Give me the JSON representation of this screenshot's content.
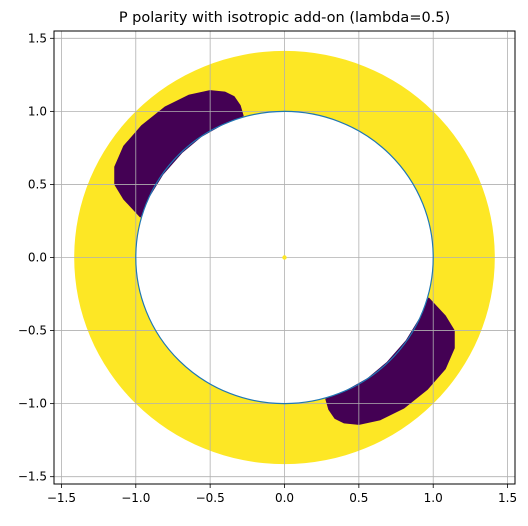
{
  "chart_data": {
    "type": "scatter",
    "title": "P polarity with isotropic add-on (lambda=0.5)",
    "xlabel": "",
    "ylabel": "",
    "xlim": [
      -1.55,
      1.55
    ],
    "ylim": [
      -1.55,
      1.55
    ],
    "grid": true,
    "aspect": "equal",
    "x_ticks": [
      -1.5,
      -1.0,
      -0.5,
      0.0,
      0.5,
      1.0,
      1.5
    ],
    "x_tick_labels": [
      "−1.5",
      "−1.0",
      "−0.5",
      "0.0",
      "0.5",
      "1.0",
      "1.5"
    ],
    "y_ticks": [
      -1.5,
      -1.0,
      -0.5,
      0.0,
      0.5,
      1.0,
      1.5
    ],
    "y_tick_labels": [
      "−1.5",
      "−1.0",
      "−0.5",
      "0.0",
      "0.5",
      "1.0",
      "1.5"
    ],
    "annulus": {
      "inner_radius": 1.0,
      "outer_radius": 1.4142,
      "fill_color": "#fde725"
    },
    "negative_regions": [
      {
        "color": "#440154",
        "outline": [
          [
            -0.97,
            0.28
          ],
          [
            -1.08,
            0.4
          ],
          [
            -1.14,
            0.5
          ],
          [
            -1.14,
            0.62
          ],
          [
            -1.08,
            0.76
          ],
          [
            -0.96,
            0.9
          ],
          [
            -0.8,
            1.03
          ],
          [
            -0.64,
            1.11
          ],
          [
            -0.5,
            1.14
          ],
          [
            -0.4,
            1.13
          ],
          [
            -0.34,
            1.1
          ],
          [
            -0.3,
            1.04
          ],
          [
            -0.28,
            0.97
          ],
          [
            -0.42,
            0.91
          ],
          [
            -0.56,
            0.83
          ],
          [
            -0.69,
            0.72
          ],
          [
            -0.82,
            0.57
          ],
          [
            -0.91,
            0.42
          ]
        ]
      },
      {
        "color": "#440154",
        "outline": [
          [
            0.97,
            -0.28
          ],
          [
            1.08,
            -0.4
          ],
          [
            1.14,
            -0.5
          ],
          [
            1.14,
            -0.62
          ],
          [
            1.08,
            -0.76
          ],
          [
            0.96,
            -0.9
          ],
          [
            0.8,
            -1.03
          ],
          [
            0.64,
            -1.11
          ],
          [
            0.5,
            -1.14
          ],
          [
            0.4,
            -1.13
          ],
          [
            0.34,
            -1.1
          ],
          [
            0.3,
            -1.04
          ],
          [
            0.28,
            -0.97
          ],
          [
            0.42,
            -0.91
          ],
          [
            0.56,
            -0.83
          ],
          [
            0.69,
            -0.72
          ],
          [
            0.82,
            -0.57
          ],
          [
            0.91,
            -0.42
          ]
        ]
      }
    ],
    "unit_circle": {
      "radius": 1.0,
      "color": "#1f77b4"
    },
    "center_point": {
      "x": 0.0,
      "y": 0.0,
      "color": "#fde725"
    }
  }
}
